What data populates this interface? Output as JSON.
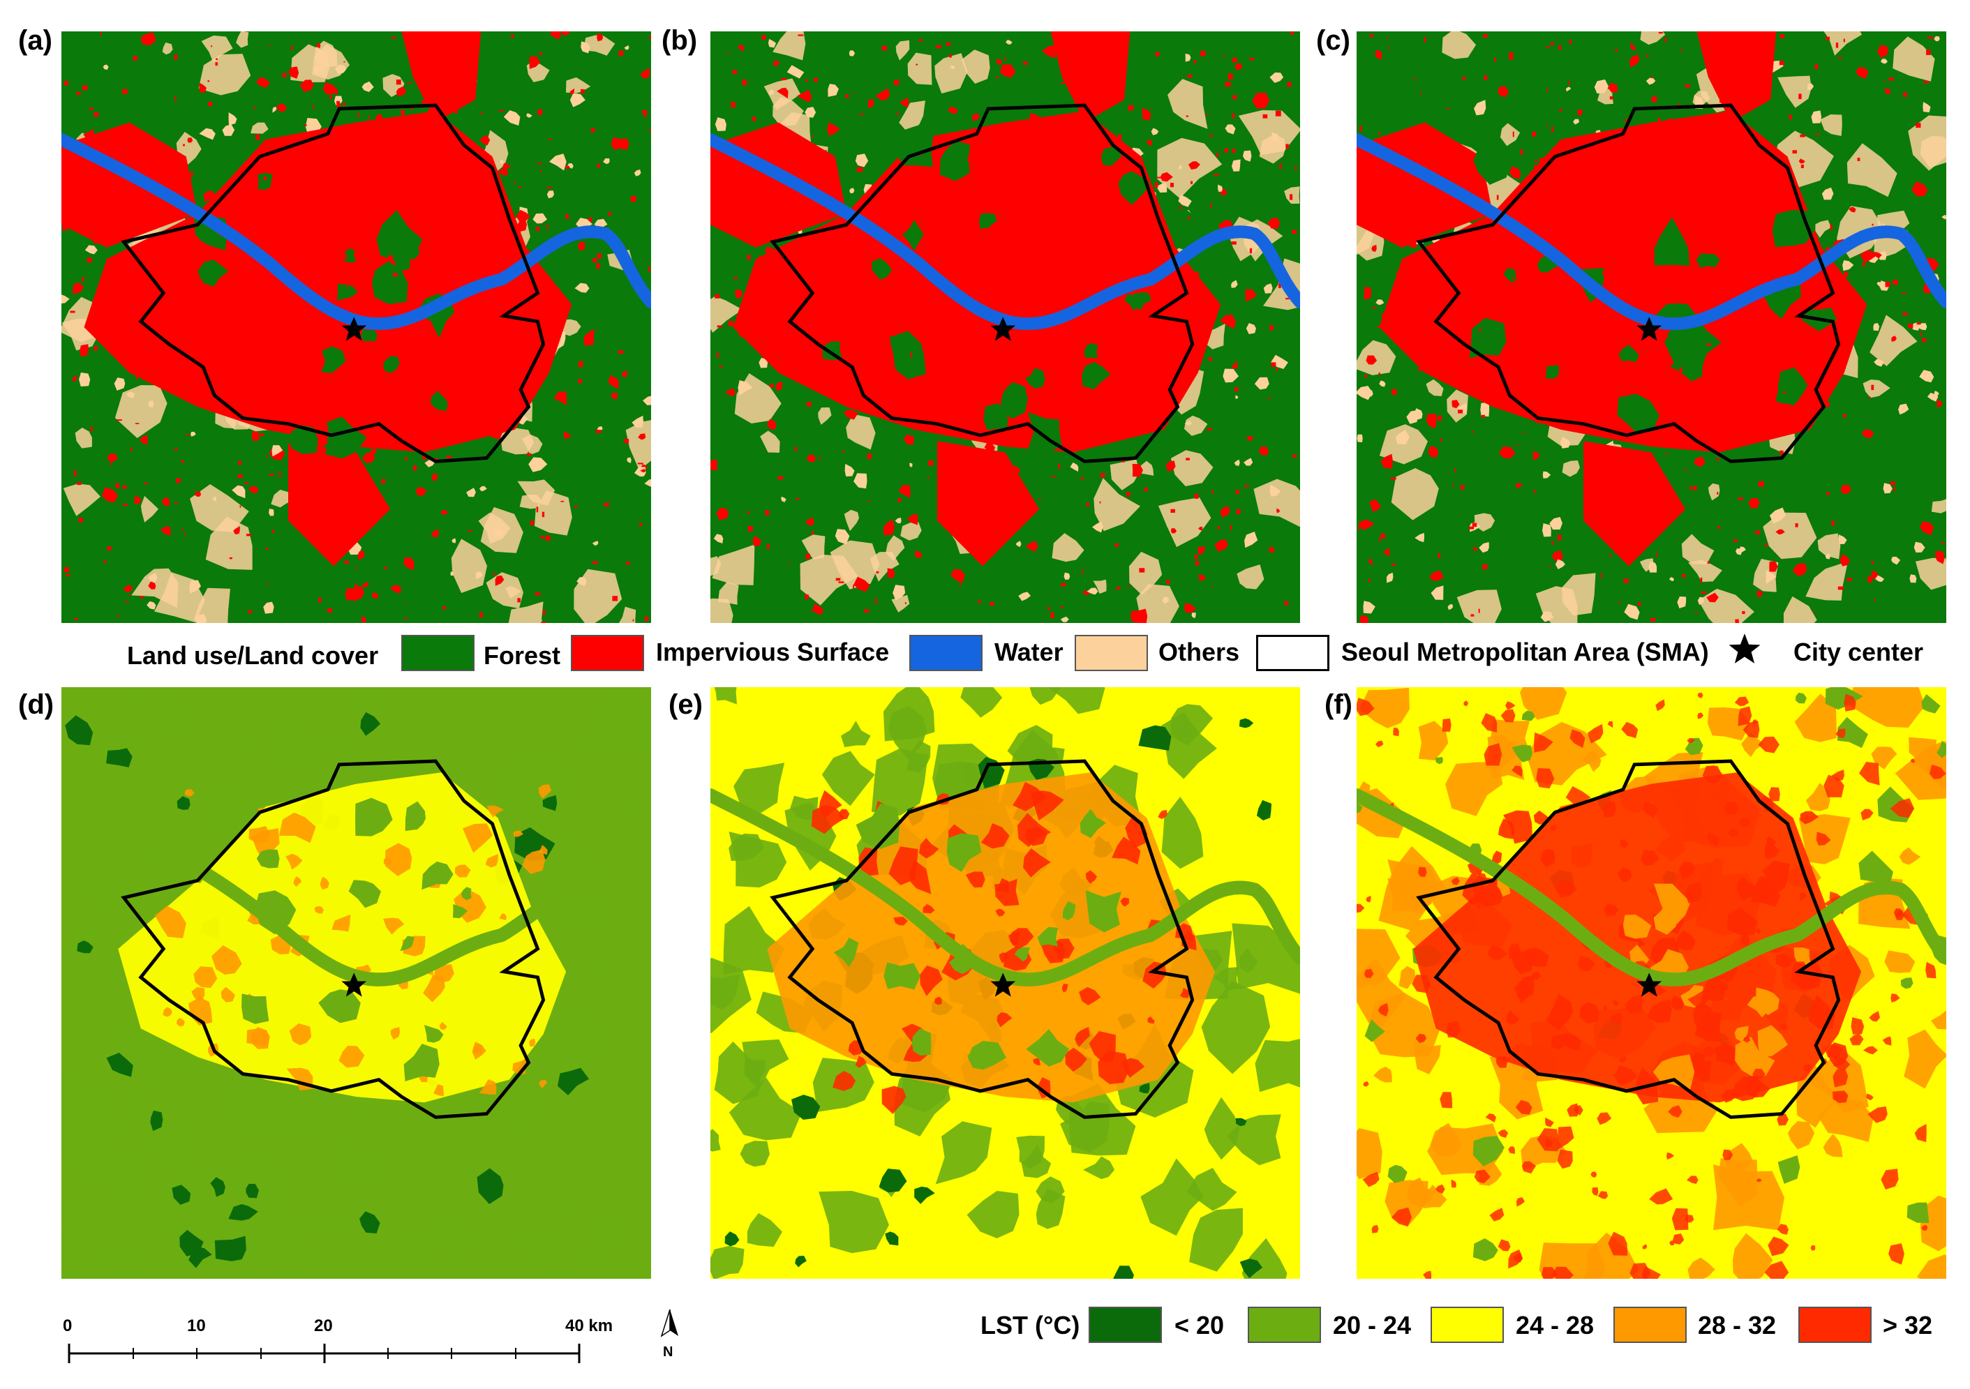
{
  "panels": [
    {
      "label": "(a)",
      "type": "lulc"
    },
    {
      "label": "(b)",
      "type": "lulc"
    },
    {
      "label": "(c)",
      "type": "lulc"
    },
    {
      "label": "(d)",
      "type": "lst",
      "variant": "cool"
    },
    {
      "label": "(e)",
      "type": "lst",
      "variant": "mid"
    },
    {
      "label": "(f)",
      "type": "lst",
      "variant": "hot"
    }
  ],
  "lulc_legend": {
    "title": "Land use/Land cover",
    "items": [
      {
        "label": "Forest",
        "color": "#0a7a0a"
      },
      {
        "label": "Impervious Surface",
        "color": "#ff0000"
      },
      {
        "label": "Water",
        "color": "#1565e0"
      },
      {
        "label": "Others",
        "color": "#fcd19c"
      },
      {
        "label": "Seoul Metropolitan Area (SMA)",
        "color": "#ffffff"
      },
      {
        "label": "City center",
        "icon": "star-icon"
      }
    ]
  },
  "lst_legend": {
    "title": "LST (°C)",
    "items": [
      {
        "label": "< 20",
        "color": "#0b6b0b"
      },
      {
        "label": "20 - 24",
        "color": "#6cae12"
      },
      {
        "label": "24 - 28",
        "color": "#ffff00"
      },
      {
        "label": "28 - 32",
        "color": "#ff9900"
      },
      {
        "label": "> 32",
        "color": "#ff2a00"
      }
    ]
  },
  "scale_bar": {
    "ticks": [
      "0",
      "10",
      "20",
      "40 km"
    ],
    "north_label": "N",
    "north_icon": "north-arrow-icon"
  }
}
